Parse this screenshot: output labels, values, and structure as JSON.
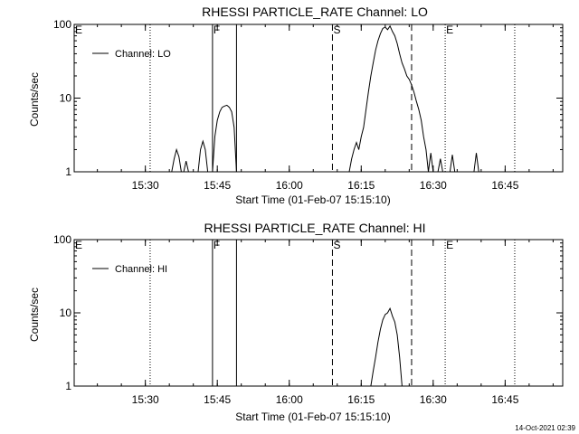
{
  "colors": {
    "foreground": "#000000",
    "background": "#ffffff"
  },
  "footer": {
    "timestamp": "14-Oct-2021 02:39"
  },
  "chart_data": [
    {
      "type": "line",
      "title": "RHESSI PARTICLE_RATE Channel: LO",
      "xlabel": "Start Time (01-Feb-07 15:15:10)",
      "ylabel": "Counts/sec",
      "yscale": "log",
      "ylim": [
        1,
        100
      ],
      "y_ticks": [
        1,
        10,
        100
      ],
      "y_tick_labels": [
        "1",
        "10",
        "100"
      ],
      "xlim": [
        "15:15:10",
        "16:57:00"
      ],
      "x_ticks": [
        "15:30",
        "15:45",
        "16:00",
        "16:15",
        "16:30",
        "16:45"
      ],
      "legend": {
        "position": "top-left",
        "entries": [
          "Channel: LO"
        ]
      },
      "markers": [
        {
          "label": "E",
          "time": "15:15:10",
          "style": "none"
        },
        {
          "label": "",
          "time": "15:31:00",
          "style": "dotted"
        },
        {
          "label": "F",
          "time": "15:44:00",
          "style": "solid"
        },
        {
          "label": "",
          "time": "15:49:00",
          "style": "solid"
        },
        {
          "label": "S",
          "time": "16:09:00",
          "style": "dashed"
        },
        {
          "label": "",
          "time": "16:25:30",
          "style": "dashed"
        },
        {
          "label": "E",
          "time": "16:32:30",
          "style": "dotted"
        },
        {
          "label": "",
          "time": "16:47:00",
          "style": "dotted"
        }
      ],
      "series": [
        {
          "name": "Channel: LO",
          "segments": [
            [
              [
                "15:35:30",
                1.0
              ],
              [
                "15:36:00",
                1.5
              ],
              [
                "15:36:30",
                2.0
              ],
              [
                "15:37:00",
                1.6
              ],
              [
                "15:37:30",
                1.0
              ]
            ],
            [
              [
                "15:38:00",
                1.0
              ],
              [
                "15:38:30",
                1.4
              ],
              [
                "15:39:00",
                1.0
              ]
            ],
            [
              [
                "15:41:00",
                1.0
              ],
              [
                "15:41:30",
                2.0
              ],
              [
                "15:42:00",
                2.6
              ],
              [
                "15:42:30",
                2.0
              ],
              [
                "15:43:00",
                1.0
              ]
            ],
            [
              [
                "15:44:00",
                1.0
              ],
              [
                "15:44:30",
                3.0
              ],
              [
                "15:45:00",
                5.0
              ],
              [
                "15:45:30",
                6.5
              ],
              [
                "15:46:00",
                7.5
              ],
              [
                "15:46:30",
                7.8
              ],
              [
                "15:47:00",
                8.0
              ],
              [
                "15:47:30",
                7.5
              ],
              [
                "15:48:00",
                6.5
              ],
              [
                "15:48:30",
                4.0
              ],
              [
                "15:49:00",
                1.0
              ]
            ],
            [
              [
                "16:12:30",
                1.0
              ],
              [
                "16:13:00",
                1.5
              ],
              [
                "16:13:30",
                2.0
              ],
              [
                "16:14:00",
                2.5
              ],
              [
                "16:14:30",
                2.0
              ],
              [
                "16:15:00",
                3.0
              ],
              [
                "16:15:30",
                4.0
              ],
              [
                "16:16:00",
                7.0
              ],
              [
                "16:16:30",
                12.0
              ],
              [
                "16:17:00",
                20.0
              ],
              [
                "16:17:30",
                30.0
              ],
              [
                "16:18:00",
                45.0
              ],
              [
                "16:18:30",
                60.0
              ],
              [
                "16:19:00",
                75.0
              ],
              [
                "16:19:30",
                88.0
              ],
              [
                "16:20:00",
                92.0
              ],
              [
                "16:20:30",
                85.0
              ],
              [
                "16:21:00",
                95.0
              ],
              [
                "16:21:30",
                80.0
              ],
              [
                "16:22:00",
                70.0
              ],
              [
                "16:22:30",
                55.0
              ],
              [
                "16:23:00",
                40.0
              ],
              [
                "16:23:30",
                30.0
              ],
              [
                "16:24:00",
                25.0
              ],
              [
                "16:24:30",
                20.0
              ],
              [
                "16:25:00",
                18.0
              ],
              [
                "16:25:30",
                15.0
              ],
              [
                "16:26:00",
                12.0
              ],
              [
                "16:26:30",
                9.0
              ],
              [
                "16:27:00",
                7.0
              ],
              [
                "16:27:30",
                5.0
              ],
              [
                "16:28:00",
                3.0
              ],
              [
                "16:28:30",
                2.0
              ],
              [
                "16:29:00",
                1.0
              ]
            ],
            [
              [
                "16:29:00",
                1.0
              ],
              [
                "16:29:30",
                1.8
              ],
              [
                "16:30:00",
                1.0
              ]
            ],
            [
              [
                "16:31:00",
                1.0
              ],
              [
                "16:31:30",
                1.5
              ],
              [
                "16:32:00",
                1.0
              ]
            ],
            [
              [
                "16:33:30",
                1.0
              ],
              [
                "16:34:00",
                1.7
              ],
              [
                "16:34:30",
                1.0
              ]
            ],
            [
              [
                "16:38:30",
                1.0
              ],
              [
                "16:39:00",
                1.8
              ],
              [
                "16:39:30",
                1.0
              ]
            ]
          ]
        }
      ]
    },
    {
      "type": "line",
      "title": "RHESSI PARTICLE_RATE Channel: HI",
      "xlabel": "Start Time (01-Feb-07 15:15:10)",
      "ylabel": "Counts/sec",
      "yscale": "log",
      "ylim": [
        1,
        100
      ],
      "y_ticks": [
        1,
        10,
        100
      ],
      "y_tick_labels": [
        "1",
        "10",
        "100"
      ],
      "xlim": [
        "15:15:10",
        "16:57:00"
      ],
      "x_ticks": [
        "15:30",
        "15:45",
        "16:00",
        "16:15",
        "16:30",
        "16:45"
      ],
      "legend": {
        "position": "top-left",
        "entries": [
          "Channel: HI"
        ]
      },
      "markers": [
        {
          "label": "E",
          "time": "15:15:10",
          "style": "none"
        },
        {
          "label": "",
          "time": "15:31:00",
          "style": "dotted"
        },
        {
          "label": "F",
          "time": "15:44:00",
          "style": "solid"
        },
        {
          "label": "",
          "time": "15:49:00",
          "style": "solid"
        },
        {
          "label": "S",
          "time": "16:09:00",
          "style": "dashed"
        },
        {
          "label": "",
          "time": "16:25:30",
          "style": "dashed"
        },
        {
          "label": "E",
          "time": "16:32:30",
          "style": "dotted"
        },
        {
          "label": "",
          "time": "16:47:00",
          "style": "dotted"
        }
      ],
      "series": [
        {
          "name": "Channel: HI",
          "segments": [
            [
              [
                "16:17:00",
                1.0
              ],
              [
                "16:17:30",
                1.6
              ],
              [
                "16:18:00",
                2.5
              ],
              [
                "16:18:30",
                4.0
              ],
              [
                "16:19:00",
                6.0
              ],
              [
                "16:19:30",
                8.0
              ],
              [
                "16:20:00",
                9.5
              ],
              [
                "16:20:30",
                10.0
              ],
              [
                "16:21:00",
                11.5
              ],
              [
                "16:21:30",
                9.0
              ],
              [
                "16:22:00",
                7.5
              ],
              [
                "16:22:30",
                5.0
              ],
              [
                "16:23:00",
                2.5
              ],
              [
                "16:23:30",
                1.0
              ]
            ]
          ]
        }
      ]
    }
  ]
}
